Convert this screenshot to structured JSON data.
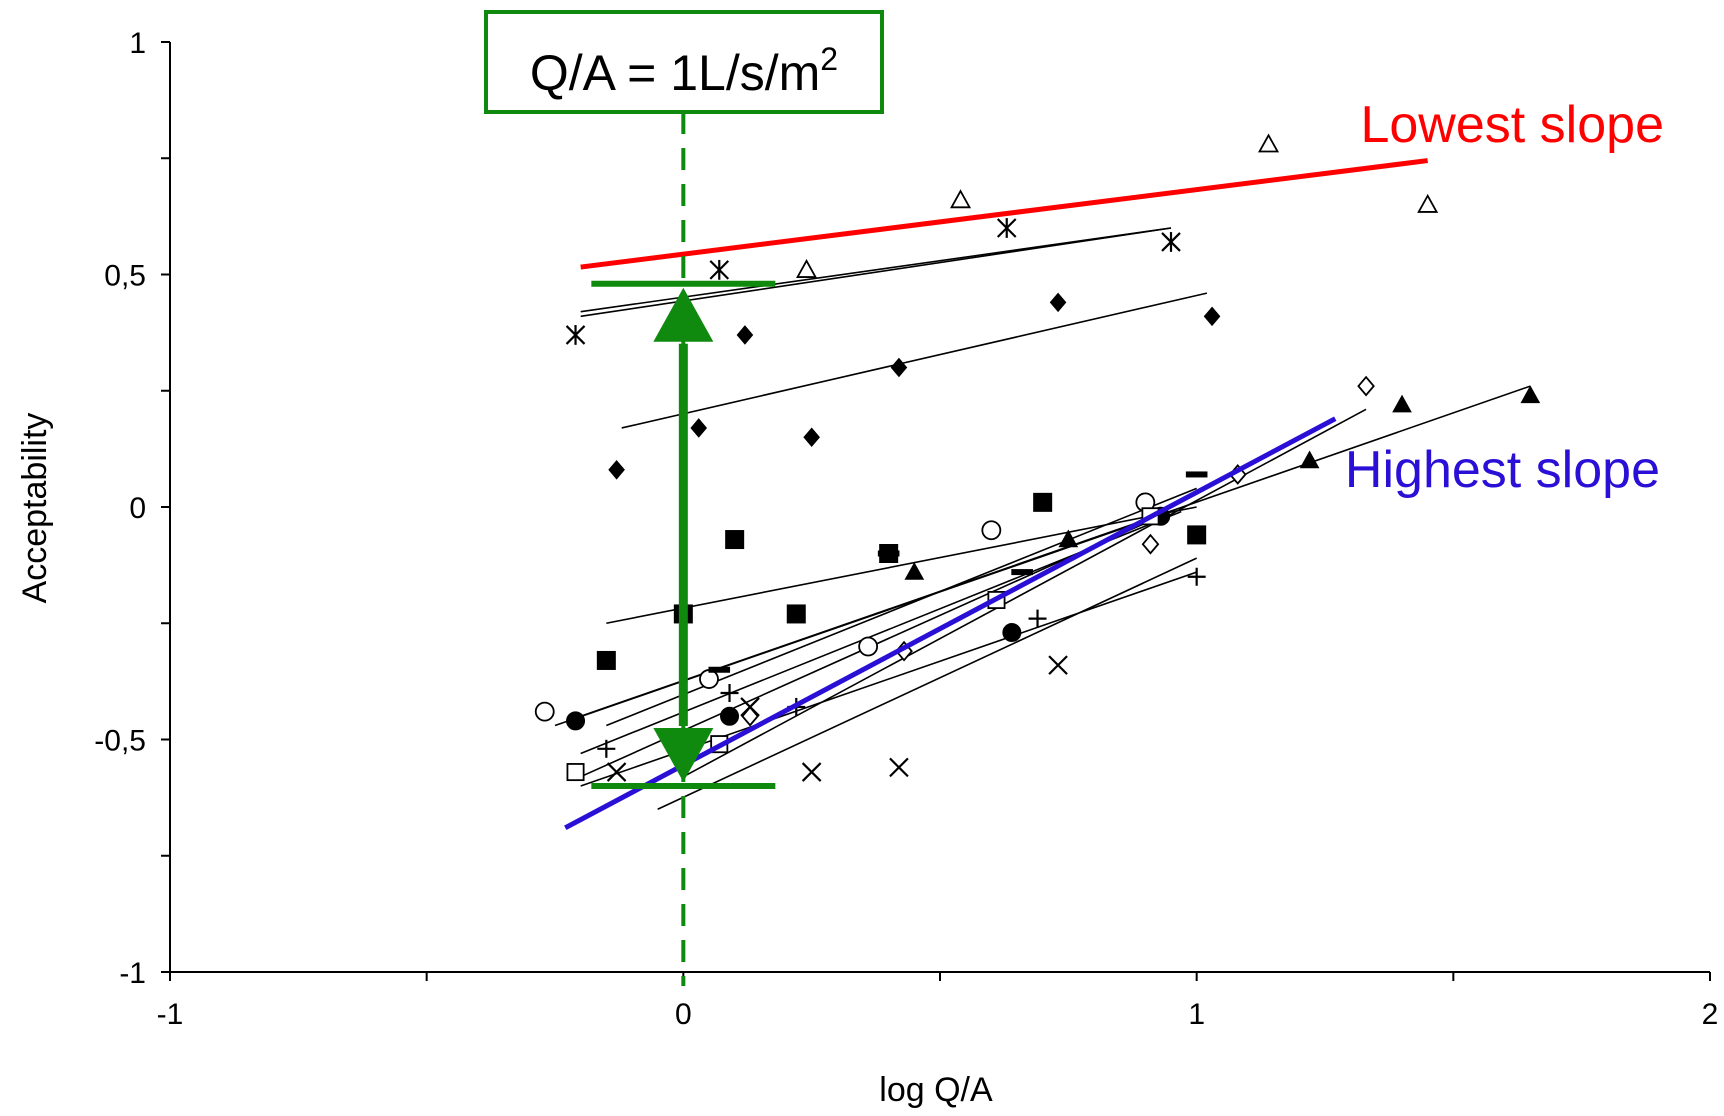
{
  "chart_data": {
    "type": "scatter",
    "xlabel": "log Q/A",
    "ylabel": "Acceptability",
    "xlim": [
      -1,
      2
    ],
    "ylim": [
      -1,
      1
    ],
    "x_ticks": [
      -1,
      -0.5,
      0,
      0.5,
      1,
      1.5,
      2
    ],
    "x_tick_labels": [
      {
        "value": -1,
        "label": "-1"
      },
      {
        "value": 0,
        "label": "0"
      },
      {
        "value": 1,
        "label": "1"
      },
      {
        "value": 2,
        "label": "2"
      }
    ],
    "y_ticks": [
      -1,
      -0.75,
      -0.5,
      -0.25,
      0,
      0.25,
      0.5,
      0.75,
      1
    ],
    "y_tick_labels": [
      {
        "value": -1,
        "label": "-1"
      },
      {
        "value": -0.5,
        "label": "-0,5"
      },
      {
        "value": 0,
        "label": "0"
      },
      {
        "value": 0.5,
        "label": "0,5"
      },
      {
        "value": 1,
        "label": "1"
      }
    ],
    "grid": false,
    "series": [
      {
        "marker": "triangle-open",
        "points": [
          [
            0.24,
            0.51
          ],
          [
            0.54,
            0.66
          ],
          [
            1.14,
            0.78
          ],
          [
            1.45,
            0.65
          ]
        ],
        "fit": [
          [
            -0.2,
            0.41
          ],
          [
            0.95,
            0.6
          ]
        ]
      },
      {
        "marker": "asterisk",
        "points": [
          [
            -0.21,
            0.37
          ],
          [
            0.07,
            0.51
          ],
          [
            0.63,
            0.6
          ],
          [
            0.95,
            0.57
          ]
        ],
        "fit": [
          [
            -0.2,
            0.42
          ],
          [
            0.95,
            0.6
          ]
        ]
      },
      {
        "marker": "diamond-filled",
        "points": [
          [
            -0.13,
            0.08
          ],
          [
            0.03,
            0.17
          ],
          [
            0.12,
            0.37
          ],
          [
            0.25,
            0.15
          ],
          [
            0.42,
            0.3
          ],
          [
            0.73,
            0.44
          ],
          [
            1.03,
            0.41
          ]
        ],
        "fit": [
          [
            -0.12,
            0.17
          ],
          [
            1.02,
            0.46
          ]
        ]
      },
      {
        "marker": "square-filled",
        "points": [
          [
            -0.15,
            -0.33
          ],
          [
            0.0,
            -0.23
          ],
          [
            0.1,
            -0.07
          ],
          [
            0.22,
            -0.23
          ],
          [
            0.4,
            -0.1
          ],
          [
            0.7,
            0.01
          ],
          [
            1.0,
            -0.06
          ]
        ],
        "fit": [
          [
            -0.15,
            -0.25
          ],
          [
            1.0,
            0.0
          ]
        ]
      },
      {
        "marker": "circle-open",
        "points": [
          [
            -0.27,
            -0.44
          ],
          [
            0.05,
            -0.37
          ],
          [
            0.36,
            -0.3
          ],
          [
            0.6,
            -0.05
          ],
          [
            0.9,
            0.01
          ]
        ],
        "fit": [
          [
            -0.25,
            -0.47
          ],
          [
            0.95,
            -0.01
          ]
        ]
      },
      {
        "marker": "circle-filled",
        "points": [
          [
            -0.21,
            -0.46
          ],
          [
            0.09,
            -0.45
          ],
          [
            0.64,
            -0.27
          ],
          [
            0.93,
            -0.02
          ]
        ],
        "fit": [
          [
            -0.2,
            -0.53
          ],
          [
            0.97,
            -0.01
          ]
        ]
      },
      {
        "marker": "triangle-filled",
        "points": [
          [
            0.45,
            -0.14
          ],
          [
            0.75,
            -0.07
          ],
          [
            1.22,
            0.1
          ],
          [
            1.4,
            0.22
          ],
          [
            1.65,
            0.24
          ]
        ],
        "fit": [
          [
            -0.2,
            -0.45
          ],
          [
            1.65,
            0.26
          ]
        ]
      },
      {
        "marker": "dash",
        "points": [
          [
            0.07,
            -0.35
          ],
          [
            0.4,
            -0.1
          ],
          [
            0.66,
            -0.14
          ],
          [
            1.0,
            0.07
          ]
        ],
        "fit": [
          [
            -0.15,
            -0.47
          ],
          [
            1.0,
            0.04
          ]
        ]
      },
      {
        "marker": "square-open",
        "points": [
          [
            -0.21,
            -0.57
          ],
          [
            0.07,
            -0.51
          ],
          [
            0.61,
            -0.2
          ],
          [
            0.91,
            -0.02
          ]
        ],
        "fit": [
          [
            -0.2,
            -0.58
          ],
          [
            0.95,
            -0.01
          ]
        ]
      },
      {
        "marker": "diamond-open",
        "points": [
          [
            0.13,
            -0.45
          ],
          [
            0.43,
            -0.31
          ],
          [
            0.91,
            -0.08
          ],
          [
            1.08,
            0.07
          ],
          [
            1.33,
            0.26
          ]
        ],
        "fit": [
          [
            0.0,
            -0.58
          ],
          [
            1.33,
            0.21
          ]
        ]
      },
      {
        "marker": "plus",
        "points": [
          [
            -0.15,
            -0.52
          ],
          [
            0.09,
            -0.4
          ],
          [
            0.22,
            -0.43
          ],
          [
            0.69,
            -0.24
          ],
          [
            1.0,
            -0.15
          ]
        ],
        "fit": [
          [
            -0.2,
            -0.6
          ],
          [
            1.0,
            -0.14
          ]
        ]
      },
      {
        "marker": "x-cross",
        "points": [
          [
            -0.13,
            -0.57
          ],
          [
            0.13,
            -0.43
          ],
          [
            0.25,
            -0.57
          ],
          [
            0.42,
            -0.56
          ],
          [
            0.73,
            -0.34
          ]
        ],
        "fit": [
          [
            -0.05,
            -0.65
          ],
          [
            1.0,
            -0.11
          ]
        ]
      }
    ],
    "highlight_lines": [
      {
        "name": "Lowest slope",
        "color": "#ff0000",
        "line": [
          [
            -0.2,
            0.516
          ],
          [
            1.45,
            0.745
          ]
        ]
      },
      {
        "name": "Highest slope",
        "color": "#2a0fd6",
        "line": [
          [
            -0.23,
            -0.69
          ],
          [
            1.27,
            0.19
          ]
        ]
      }
    ],
    "reference": {
      "box_text": "Q/A = 1L/s/m",
      "box_superscript": "2",
      "color": "#0f8a0f",
      "x": 0,
      "range": [
        -0.6,
        0.48
      ]
    }
  }
}
